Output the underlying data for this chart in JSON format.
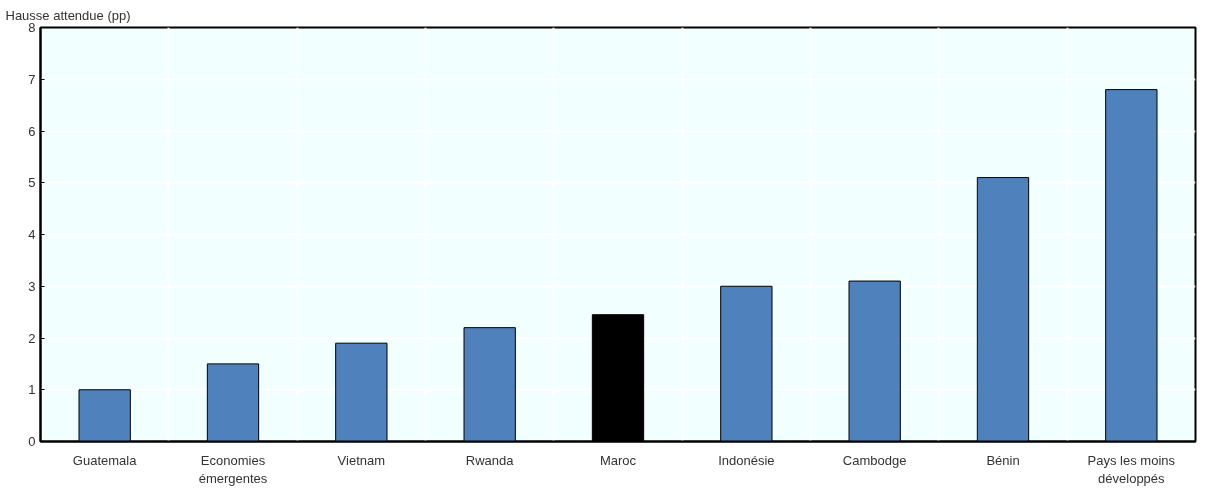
{
  "chart_data": {
    "type": "bar",
    "ylabel": "Hausse attendue (pp)",
    "categories": [
      "Guatemala",
      "Economies\némergentes",
      "Vietnam",
      "Rwanda",
      "Maroc",
      "Indonésie",
      "Cambodge",
      "Bénin",
      "Pays les moins\ndéveloppés"
    ],
    "values": [
      1.0,
      1.5,
      1.9,
      2.2,
      2.45,
      3.0,
      3.1,
      5.1,
      6.8
    ],
    "colors": [
      "#4f81bd",
      "#4f81bd",
      "#4f81bd",
      "#4f81bd",
      "#000000",
      "#4f81bd",
      "#4f81bd",
      "#4f81bd",
      "#4f81bd"
    ],
    "ylim": [
      0,
      8
    ],
    "yticks": [
      0,
      1,
      2,
      3,
      4,
      5,
      6,
      7,
      8
    ],
    "grid": true
  }
}
